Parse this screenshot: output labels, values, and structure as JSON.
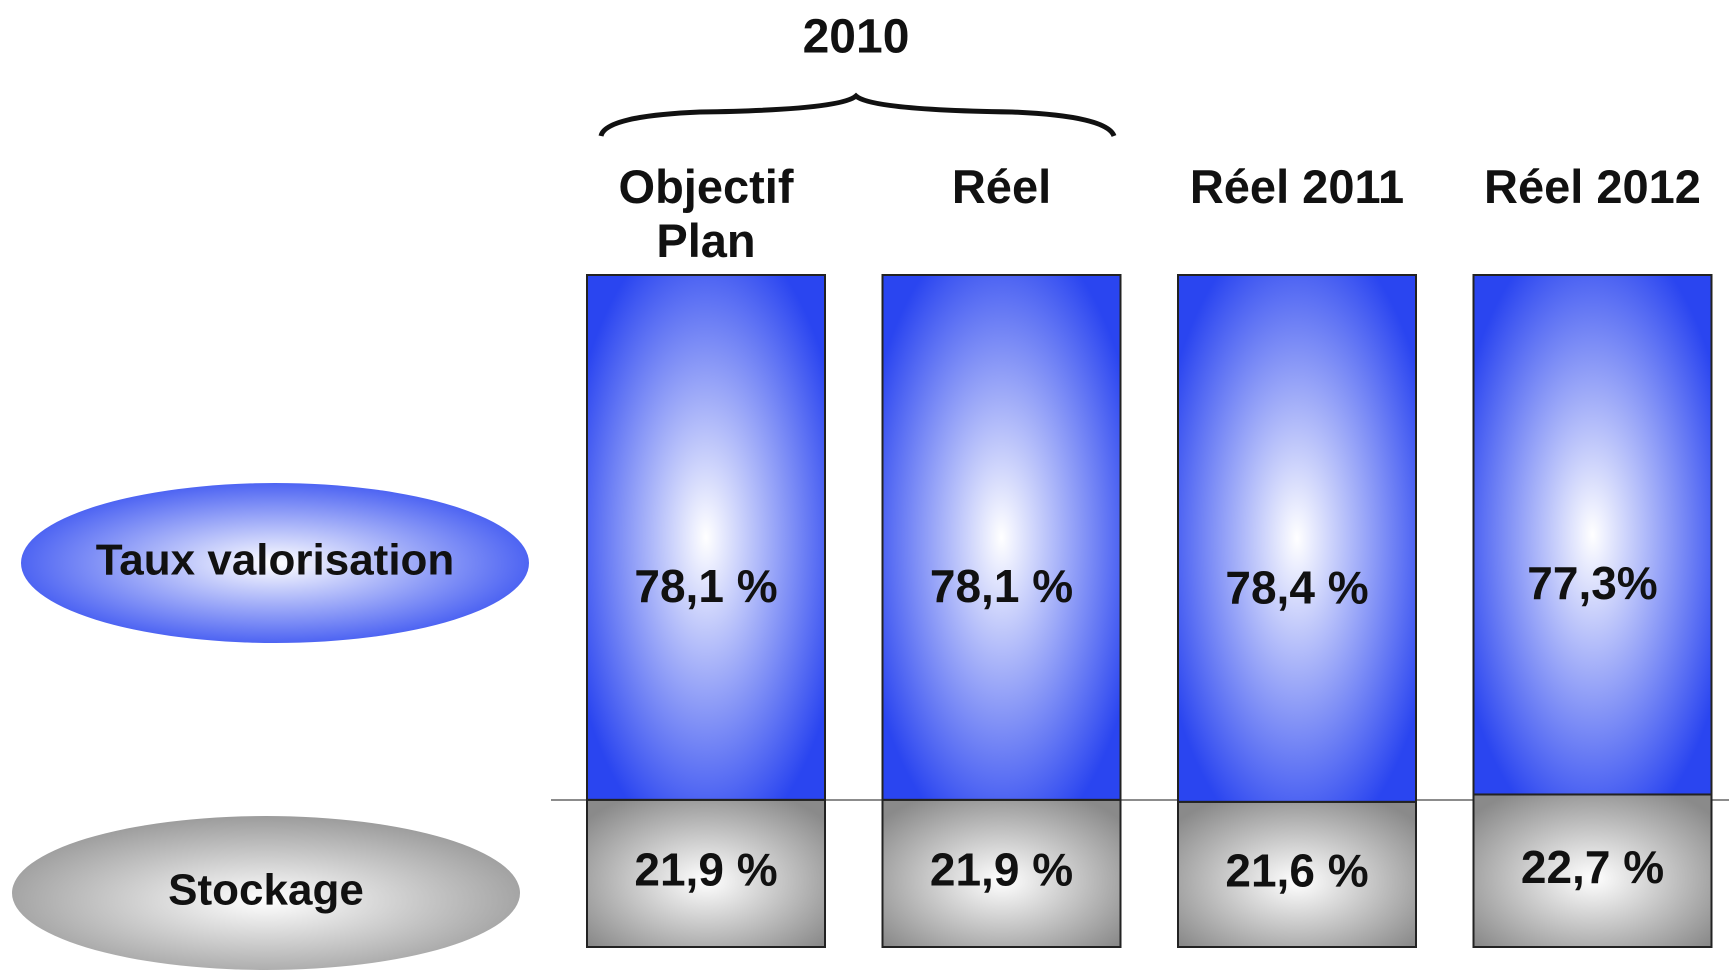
{
  "chart_data": {
    "type": "bar",
    "stacked": true,
    "annotation": "2010",
    "categories": [
      "Objectif Plan",
      "Réel",
      "Réel 2011",
      "Réel 2012"
    ],
    "series": [
      {
        "name": "Stockage",
        "color": "#8a8a8a",
        "values": [
          21.9,
          21.9,
          21.6,
          22.7
        ],
        "value_labels": [
          "21,9 %",
          "21,9 %",
          "21,6 %",
          "22,7 %"
        ]
      },
      {
        "name": "Taux valorisation",
        "color": "#2a45f0",
        "values": [
          78.1,
          78.1,
          78.4,
          77.3
        ],
        "value_labels": [
          "78,1 %",
          "78,1 %",
          "78,4 %",
          "77,3%"
        ]
      }
    ]
  }
}
